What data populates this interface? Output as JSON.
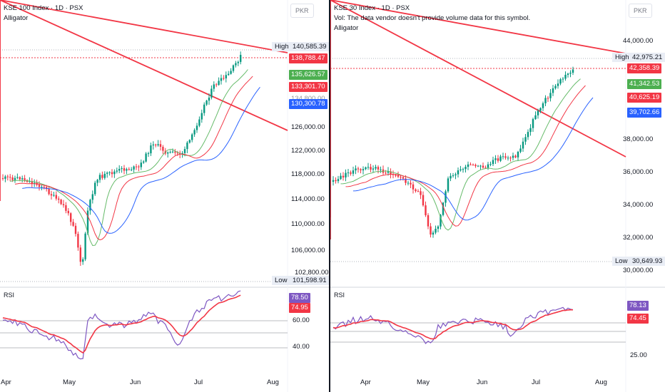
{
  "left": {
    "title": "KSE 100 Index · 1D · PSX",
    "indicator": "Alligator",
    "currency": "PKR",
    "price_axis": [
      "140,585.39",
      "126,000.00",
      "122,000.00",
      "118,000.00",
      "114,000.00",
      "110,000.00",
      "106,000.00",
      "102,800.00"
    ],
    "high_label": "High",
    "high_value": "140,585.39",
    "low_label": "Low",
    "low_value": "101,598.91",
    "last_price": "138,788.47",
    "alligator_lips": "135,626.57",
    "alligator_teeth": "133,301.70",
    "alligator_teeth_partial": "134,800.00",
    "alligator_jaw": "130,300.78",
    "rsi_label": "RSI",
    "rsi_value": "78.50",
    "rsi_ma": "74.95",
    "rsi_axis": [
      "60.00",
      "40.00"
    ],
    "months": [
      "Apr",
      "May",
      "Jun",
      "Jul",
      "Aug"
    ]
  },
  "right": {
    "title": "KSE 30 Index · 1D · PSX",
    "volume_note": "Vol: The data vendor doesn't provide volume data for this symbol.",
    "indicator": "Alligator",
    "currency": "PKR",
    "price_axis": [
      "44,000.00",
      "38,000.00",
      "36,000.00",
      "34,000.00",
      "32,000.00",
      "30,000.00"
    ],
    "high_label": "High",
    "high_value": "42,975.21",
    "low_label": "Low",
    "low_value": "30,649.93",
    "last_price": "42,358.39",
    "alligator_lips": "41,342.53",
    "alligator_teeth": "40,625.19",
    "alligator_jaw": "39,702.66",
    "rsi_label": "RSI",
    "rsi_value": "78.13",
    "rsi_ma": "74.45",
    "rsi_axis": [
      "25.00"
    ],
    "months": [
      "Apr",
      "May",
      "Jun",
      "Jul",
      "Aug"
    ]
  },
  "colors": {
    "up": "#089981",
    "down": "#f23645",
    "lips": "#66bb6a",
    "teeth": "#f23645",
    "jaw": "#2962ff",
    "rsi": "#7e57c2",
    "rsi_ma": "#f23645",
    "trend": "#f23645"
  }
}
